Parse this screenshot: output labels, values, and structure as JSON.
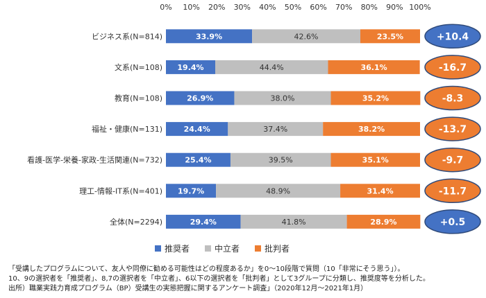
{
  "chart_data": {
    "type": "bar",
    "orientation": "horizontal",
    "stacked": true,
    "percent_stacked": true,
    "xlim": [
      0,
      100
    ],
    "x_ticks": [
      "0%",
      "10%",
      "20%",
      "30%",
      "40%",
      "50%",
      "60%",
      "70%",
      "80%",
      "90%",
      "100%"
    ],
    "grid": false,
    "legend_position": "bottom",
    "categories": [
      "ビジネス系(N=814)",
      "文系(N=108)",
      "教育(N=108)",
      "福祉・健康(N=131)",
      "看護-医学-栄養-家政-生活関連(N=732)",
      "理工-情報-IT系(N=401)",
      "全体(N=2294)"
    ],
    "series": [
      {
        "name": "推奨者",
        "color": "#4472c4",
        "label_color": "#ffffff",
        "values": [
          33.9,
          19.4,
          26.9,
          24.4,
          25.4,
          19.7,
          29.4
        ],
        "labels": [
          "33.9%",
          "19.4%",
          "26.9%",
          "24.4%",
          "25.4%",
          "19.7%",
          "29.4%"
        ]
      },
      {
        "name": "中立者",
        "color": "#bfbfbf",
        "label_color": "#333333",
        "values": [
          42.6,
          44.4,
          38.0,
          37.4,
          39.5,
          48.9,
          41.8
        ],
        "labels": [
          "42.6%",
          "44.4%",
          "38.0%",
          "37.4%",
          "39.5%",
          "48.9%",
          "41.8%"
        ]
      },
      {
        "name": "批判者",
        "color": "#ed7d31",
        "label_color": "#ffffff",
        "values": [
          23.5,
          36.1,
          35.2,
          38.2,
          35.1,
          31.4,
          28.9
        ],
        "labels": [
          "23.5%",
          "36.1%",
          "35.2%",
          "38.2%",
          "35.1%",
          "31.4%",
          "28.9%"
        ]
      }
    ],
    "nps_badges": {
      "values": [
        10.4,
        -16.7,
        -8.3,
        -13.7,
        -9.7,
        -11.7,
        0.5
      ],
      "labels": [
        "+10.4",
        "-16.7",
        "-8.3",
        "-13.7",
        "-9.7",
        "-11.7",
        "+0.5"
      ],
      "positive_color": "#4472c4",
      "negative_color": "#ed7d31",
      "border_color": "#2f4a7a"
    }
  },
  "notes": [
    "「受講したプログラムについて、友人や同僚に勧める可能性はどの程度あるか」を0～10段階で質問（10「非常にそう思う」）。",
    "10、9の選択者を「推奨者」、8,7の選択者を「中立者」、6以下の選択者を「批判者」として3グループに分類し、推奨度等を分析した。",
    "出所）職業実践力育成プログラム（BP）受講生の実態把握に関するアンケート調査」（2020年12月～2021年1月）"
  ]
}
